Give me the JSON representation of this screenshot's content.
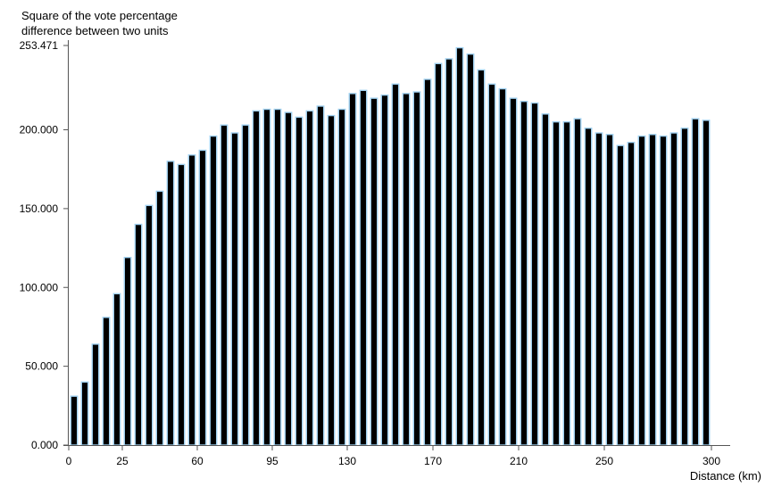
{
  "chart_data": {
    "type": "bar",
    "ylabel": [
      "Square of the vote percentage",
      "difference between two units"
    ],
    "xlabel": "Distance (km)",
    "ylim": [
      0,
      253.471
    ],
    "yticks": [
      "0.000",
      "50.000",
      "100.000",
      "150.000",
      "200.000",
      "253.471"
    ],
    "ytick_values": [
      0,
      50,
      100,
      150,
      200,
      253.471
    ],
    "xlim": [
      0,
      300
    ],
    "xticks": [
      "0",
      "25",
      "60",
      "95",
      "130",
      "170",
      "210",
      "250",
      "300"
    ],
    "xtick_values": [
      0,
      25,
      60,
      95,
      130,
      170,
      210,
      250,
      300
    ],
    "bar_fill": "#000000",
    "bar_outline": "#9fd0f0",
    "grid": false,
    "values": [
      31,
      40,
      64,
      81,
      96,
      119,
      140,
      152,
      161,
      180,
      178,
      184,
      187,
      196,
      203,
      198,
      203,
      212,
      213,
      213,
      211,
      208,
      212,
      215,
      209,
      213,
      223,
      225,
      220,
      222,
      229,
      223,
      224,
      232,
      242,
      245,
      252,
      248,
      238,
      229,
      226,
      220,
      218,
      217,
      210,
      205,
      205,
      207,
      201,
      198,
      197,
      190,
      192,
      196,
      197,
      196,
      198,
      201,
      207,
      206
    ]
  }
}
